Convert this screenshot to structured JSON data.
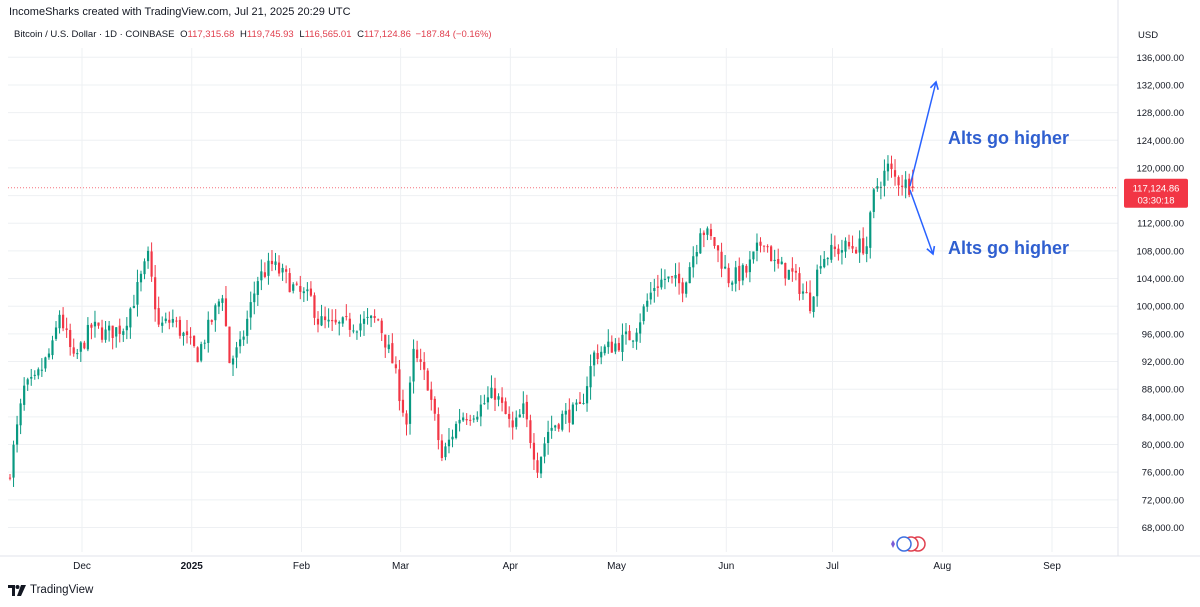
{
  "header": {
    "credit": "IncomeSharks created with TradingView.com, Jul 21, 2025 20:29 UTC"
  },
  "legend": {
    "symbol": "Bitcoin / U.S. Dollar · 1D · COINBASE",
    "o_label": "O",
    "o_value": "117,315.68",
    "h_label": "H",
    "h_value": "119,745.93",
    "l_label": "L",
    "l_value": "116,565.01",
    "c_label": "C",
    "c_value": "117,124.86",
    "change": "−187.84 (−0.16%)"
  },
  "axis": {
    "currency": "USD",
    "last_price_label": "117,124.86",
    "countdown_label": "03:30:18"
  },
  "annotations": {
    "upper_text": "Alts go higher",
    "lower_text": "Alts go higher"
  },
  "footer": {
    "brand": "TradingView"
  },
  "colors": {
    "up": "#089981",
    "down": "#f23645",
    "annotation": "#2962ff",
    "annotation_text": "#2f5fd0",
    "grid": "#eef0f3"
  },
  "chart_data": {
    "type": "candlestick",
    "symbol": "BTCUSD",
    "interval": "1D",
    "exchange": "COINBASE",
    "ylim": [
      64000,
      139000
    ],
    "y_ticks": [
      68000,
      72000,
      76000,
      80000,
      84000,
      88000,
      92000,
      96000,
      100000,
      104000,
      108000,
      112000,
      116000,
      120000,
      124000,
      128000,
      132000,
      136000
    ],
    "y_tick_labels": [
      "68,000.00",
      "72,000.00",
      "76,000.00",
      "80,000.00",
      "84,000.00",
      "88,000.00",
      "92,000.00",
      "96,000.00",
      "100,000.00",
      "104,000.00",
      "108,000.00",
      "112,000.00",
      "120,000.00",
      "124,000.00",
      "128,000.00",
      "132,000.00",
      "136,000.00"
    ],
    "x_ticks": [
      "Dec",
      "2025",
      "Feb",
      "Mar",
      "Apr",
      "May",
      "Jun",
      "Jul",
      "Aug",
      "Sep"
    ],
    "x_tick_dates": [
      "2024-12-01",
      "2025-01-01",
      "2025-02-01",
      "2025-03-01",
      "2025-04-01",
      "2025-05-01",
      "2025-06-01",
      "2025-07-01",
      "2025-08-01",
      "2025-09-01"
    ],
    "last_price": 117124.86,
    "price_path": [
      [
        "2024-11-08",
        76500
      ],
      [
        "2024-11-12",
        88000
      ],
      [
        "2024-11-15",
        89000
      ],
      [
        "2024-11-20",
        94000
      ],
      [
        "2024-11-22",
        99000
      ],
      [
        "2024-11-26",
        92000
      ],
      [
        "2024-12-01",
        97000
      ],
      [
        "2024-12-05",
        96000
      ],
      [
        "2024-12-10",
        97000
      ],
      [
        "2024-12-13",
        101000
      ],
      [
        "2024-12-17",
        107000
      ],
      [
        "2024-12-20",
        97000
      ],
      [
        "2024-12-24",
        98000
      ],
      [
        "2024-12-28",
        95000
      ],
      [
        "2024-12-31",
        93000
      ],
      [
        "2025-01-04",
        98000
      ],
      [
        "2025-01-07",
        102000
      ],
      [
        "2025-01-09",
        92000
      ],
      [
        "2025-01-12",
        94000
      ],
      [
        "2025-01-17",
        104000
      ],
      [
        "2025-01-21",
        106000
      ],
      [
        "2025-01-25",
        104000
      ],
      [
        "2025-01-28",
        102000
      ],
      [
        "2025-02-01",
        101000
      ],
      [
        "2025-02-03",
        98000
      ],
      [
        "2025-02-07",
        97000
      ],
      [
        "2025-02-14",
        97500
      ],
      [
        "2025-02-20",
        98000
      ],
      [
        "2025-02-24",
        92000
      ],
      [
        "2025-02-28",
        83000
      ],
      [
        "2025-03-02",
        93000
      ],
      [
        "2025-03-06",
        89000
      ],
      [
        "2025-03-10",
        78000
      ],
      [
        "2025-03-15",
        84000
      ],
      [
        "2025-03-20",
        85000
      ],
      [
        "2025-03-25",
        87500
      ],
      [
        "2025-03-30",
        82000
      ],
      [
        "2025-04-02",
        85000
      ],
      [
        "2025-04-06",
        77000
      ],
      [
        "2025-04-09",
        82000
      ],
      [
        "2025-04-13",
        84000
      ],
      [
        "2025-04-18",
        85000
      ],
      [
        "2025-04-22",
        93000
      ],
      [
        "2025-04-26",
        94000
      ],
      [
        "2025-04-30",
        95000
      ],
      [
        "2025-05-03",
        96000
      ],
      [
        "2025-05-09",
        103000
      ],
      [
        "2025-05-12",
        104000
      ],
      [
        "2025-05-17",
        103000
      ],
      [
        "2025-05-21",
        109000
      ],
      [
        "2025-05-22",
        111500
      ],
      [
        "2025-05-26",
        109000
      ],
      [
        "2025-05-30",
        104000
      ],
      [
        "2025-06-04",
        105000
      ],
      [
        "2025-06-09",
        110000
      ],
      [
        "2025-06-12",
        106000
      ],
      [
        "2025-06-17",
        104500
      ],
      [
        "2025-06-22",
        100500
      ],
      [
        "2025-06-25",
        107000
      ],
      [
        "2025-06-29",
        108000
      ],
      [
        "2025-07-02",
        108500
      ],
      [
        "2025-07-08",
        108800
      ],
      [
        "2025-07-10",
        116000
      ],
      [
        "2025-07-11",
        117500
      ],
      [
        "2025-07-14",
        120000
      ],
      [
        "2025-07-16",
        118500
      ],
      [
        "2025-07-18",
        118000
      ],
      [
        "2025-07-20",
        117400
      ],
      [
        "2025-07-21",
        117124.86
      ]
    ],
    "annotations": [
      {
        "type": "arrow",
        "direction": "up",
        "text": "Alts go higher",
        "target_price": 132000
      },
      {
        "type": "arrow",
        "direction": "down",
        "text": "Alts go higher",
        "target_price": 108000
      }
    ]
  }
}
